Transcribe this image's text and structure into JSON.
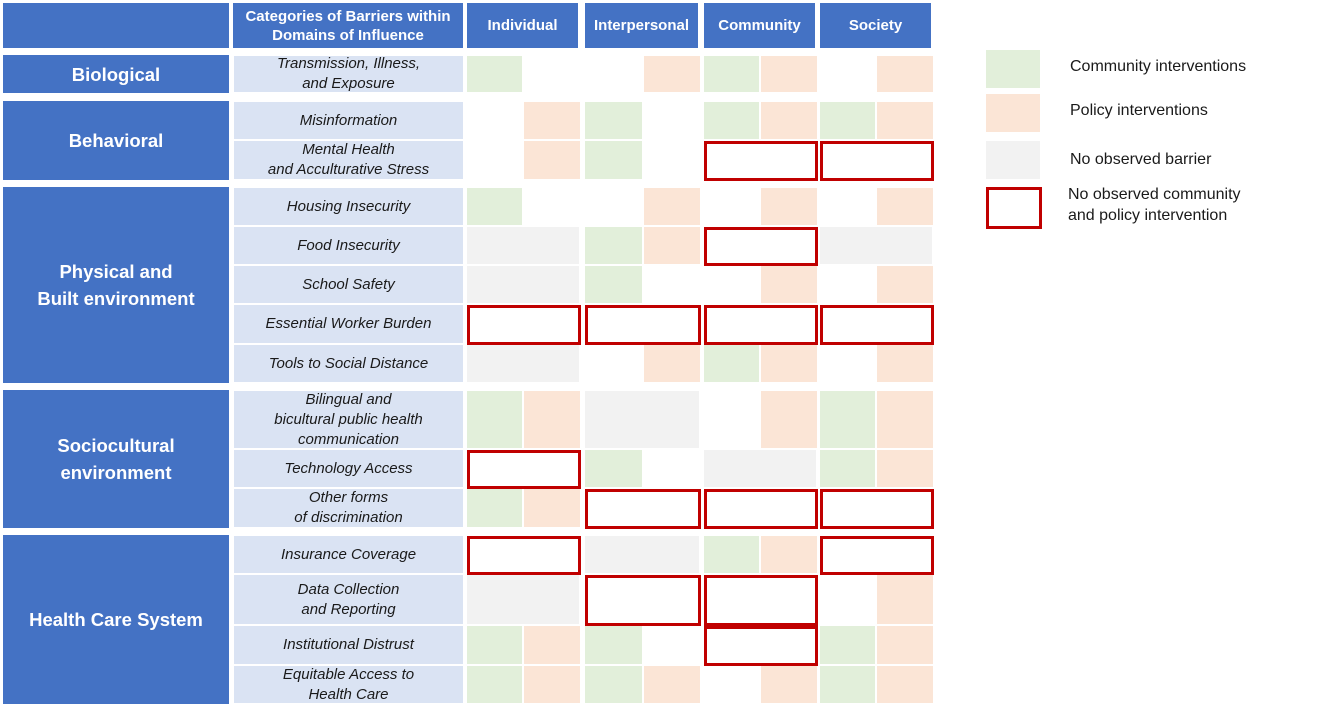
{
  "header": {
    "categories_label": "Categories of Barriers within Domains of Influence",
    "columns": [
      "Individual",
      "Interpersonal",
      "Community",
      "Society"
    ]
  },
  "domains": [
    {
      "label": "Biological",
      "rows": [
        0,
        0
      ]
    },
    {
      "label": "Behavioral",
      "rows": [
        1,
        2
      ]
    },
    {
      "label": "Physical and\nBuilt environment",
      "rows": [
        3,
        7
      ]
    },
    {
      "label": "Sociocultural\nenvironment",
      "rows": [
        8,
        10
      ]
    },
    {
      "label": "Health Care System",
      "rows": [
        11,
        14
      ]
    }
  ],
  "rows": [
    {
      "label": "Transmission, Illness,\nand Exposure",
      "cells": [
        [
          "G",
          ""
        ],
        [
          "",
          "P"
        ],
        [
          "G",
          "P"
        ],
        [
          "",
          "P"
        ]
      ],
      "no_intervention": [
        false,
        false,
        false,
        false
      ]
    },
    {
      "label": "Misinformation",
      "cells": [
        [
          "",
          "P"
        ],
        [
          "G",
          ""
        ],
        [
          "G",
          "P"
        ],
        [
          "G",
          "P"
        ]
      ],
      "no_intervention": [
        false,
        false,
        false,
        false
      ]
    },
    {
      "label": "Mental Health\nand Acculturative Stress",
      "cells": [
        [
          "",
          "P"
        ],
        [
          "G",
          ""
        ],
        [
          "",
          ""
        ],
        [
          "",
          ""
        ]
      ],
      "no_intervention": [
        false,
        false,
        true,
        true
      ]
    },
    {
      "label": "Housing Insecurity",
      "cells": [
        [
          "G",
          ""
        ],
        [
          "",
          "P"
        ],
        [
          "",
          "P"
        ],
        [
          "",
          "P"
        ]
      ],
      "no_intervention": [
        false,
        false,
        false,
        false
      ]
    },
    {
      "label": "Food Insecurity",
      "cells": [
        [
          "N",
          ""
        ],
        [
          "G",
          "P"
        ],
        [
          "",
          ""
        ],
        [
          "N",
          ""
        ]
      ],
      "no_intervention": [
        false,
        false,
        true,
        false
      ]
    },
    {
      "label": "School Safety",
      "cells": [
        [
          "N",
          ""
        ],
        [
          "G",
          ""
        ],
        [
          "",
          "P"
        ],
        [
          "",
          "P"
        ]
      ],
      "no_intervention": [
        false,
        false,
        false,
        false
      ]
    },
    {
      "label": "Essential Worker Burden",
      "cells": [
        [
          "",
          ""
        ],
        [
          "",
          ""
        ],
        [
          "",
          ""
        ],
        [
          "",
          ""
        ]
      ],
      "no_intervention": [
        true,
        true,
        true,
        true
      ]
    },
    {
      "label": "Tools to Social Distance",
      "cells": [
        [
          "N",
          ""
        ],
        [
          "",
          "P"
        ],
        [
          "G",
          "P"
        ],
        [
          "",
          "P"
        ]
      ],
      "no_intervention": [
        false,
        false,
        false,
        false
      ]
    },
    {
      "label": "Bilingual and\nbicultural public health\ncommunication",
      "cells": [
        [
          "G",
          "P"
        ],
        [
          "N",
          ""
        ],
        [
          "",
          "P"
        ],
        [
          "G",
          "P"
        ]
      ],
      "no_intervention": [
        false,
        false,
        false,
        false
      ]
    },
    {
      "label": "Technology Access",
      "cells": [
        [
          "",
          ""
        ],
        [
          "G",
          ""
        ],
        [
          "N",
          ""
        ],
        [
          "G",
          "P"
        ]
      ],
      "no_intervention": [
        true,
        false,
        false,
        false
      ]
    },
    {
      "label": "Other forms\nof discrimination",
      "cells": [
        [
          "G",
          "P"
        ],
        [
          "",
          ""
        ],
        [
          "",
          ""
        ],
        [
          "",
          ""
        ]
      ],
      "no_intervention": [
        false,
        true,
        true,
        true
      ]
    },
    {
      "label": "Insurance Coverage",
      "cells": [
        [
          "",
          ""
        ],
        [
          "N",
          ""
        ],
        [
          "G",
          "P"
        ],
        [
          "",
          ""
        ]
      ],
      "no_intervention": [
        true,
        false,
        false,
        true
      ]
    },
    {
      "label": "Data Collection\nand Reporting",
      "cells": [
        [
          "N",
          ""
        ],
        [
          "",
          ""
        ],
        [
          "",
          ""
        ],
        [
          "",
          "P"
        ]
      ],
      "no_intervention": [
        false,
        true,
        true,
        false
      ]
    },
    {
      "label": "Institutional Distrust",
      "cells": [
        [
          "G",
          "P"
        ],
        [
          "G",
          ""
        ],
        [
          "",
          ""
        ],
        [
          "G",
          "P"
        ]
      ],
      "no_intervention": [
        false,
        false,
        true,
        false
      ]
    },
    {
      "label": "Equitable Access to\nHealth Care",
      "cells": [
        [
          "G",
          "P"
        ],
        [
          "G",
          "P"
        ],
        [
          "",
          "P"
        ],
        [
          "G",
          "P"
        ]
      ],
      "no_intervention": [
        false,
        false,
        false,
        false
      ]
    }
  ],
  "legend": {
    "community": "Community  interventions",
    "policy": "Policy interventions",
    "no_barrier": "No observed barrier",
    "no_intervention": "No observed community\nand policy intervention"
  },
  "colors": {
    "header_blue": "#4472C4",
    "label_light_blue": "#DAE3F3",
    "community_green": "#E2EFDA",
    "policy_peach": "#FBE5D6",
    "no_barrier_grey": "#F2F2F2",
    "no_intervention_red": "#C00000"
  }
}
